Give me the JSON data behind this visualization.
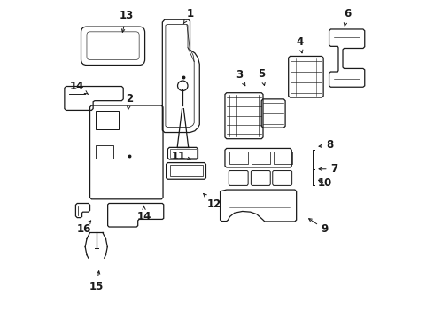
{
  "background_color": "#ffffff",
  "line_color": "#1a1a1a",
  "figsize": [
    4.9,
    3.6
  ],
  "dpi": 100,
  "labels": [
    [
      1,
      0.415,
      0.04,
      0.39,
      0.08
    ],
    [
      2,
      0.225,
      0.31,
      0.22,
      0.345
    ],
    [
      3,
      0.57,
      0.235,
      0.59,
      0.27
    ],
    [
      4,
      0.76,
      0.13,
      0.77,
      0.175
    ],
    [
      5,
      0.64,
      0.23,
      0.65,
      0.27
    ],
    [
      6,
      0.91,
      0.042,
      0.9,
      0.09
    ],
    [
      7,
      0.87,
      0.53,
      0.81,
      0.53
    ],
    [
      8,
      0.855,
      0.455,
      0.81,
      0.46
    ],
    [
      9,
      0.84,
      0.72,
      0.78,
      0.68
    ],
    [
      10,
      0.84,
      0.575,
      0.81,
      0.56
    ],
    [
      11,
      0.38,
      0.49,
      0.42,
      0.5
    ],
    [
      12,
      0.49,
      0.64,
      0.45,
      0.6
    ],
    [
      13,
      0.215,
      0.048,
      0.2,
      0.11
    ],
    [
      14,
      0.058,
      0.27,
      0.095,
      0.295
    ],
    [
      14,
      0.27,
      0.68,
      0.27,
      0.645
    ],
    [
      15,
      0.12,
      0.9,
      0.13,
      0.84
    ],
    [
      16,
      0.08,
      0.72,
      0.105,
      0.69
    ]
  ]
}
